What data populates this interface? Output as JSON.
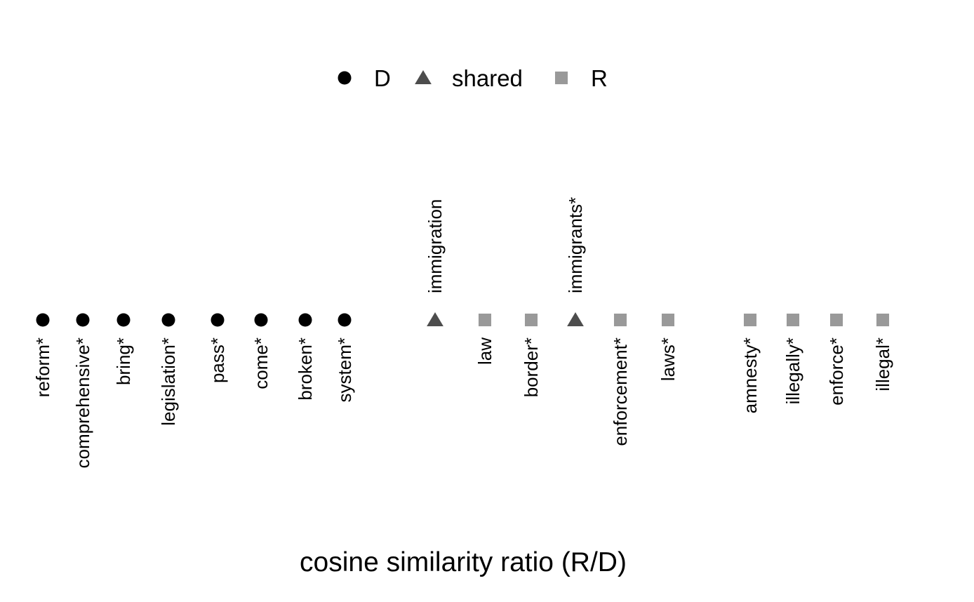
{
  "chart_data": {
    "type": "scatter",
    "xlabel": "cosine similarity ratio (R/D)",
    "legend_position": "top",
    "legend": [
      {
        "key": "D",
        "label": "D",
        "shape": "circle",
        "color": "#000000"
      },
      {
        "key": "shared",
        "label": "shared",
        "shape": "triangle",
        "color": "#4d4d4d"
      },
      {
        "key": "R",
        "label": "R",
        "shape": "square",
        "color": "#999999"
      }
    ],
    "points": [
      {
        "label": "reform*",
        "group": "D"
      },
      {
        "label": "comprehensive*",
        "group": "D"
      },
      {
        "label": "bring*",
        "group": "D"
      },
      {
        "label": "legislation*",
        "group": "D"
      },
      {
        "label": "pass*",
        "group": "D"
      },
      {
        "label": "come*",
        "group": "D"
      },
      {
        "label": "broken*",
        "group": "D"
      },
      {
        "label": "system*",
        "group": "D"
      },
      {
        "label": "immigration",
        "group": "shared"
      },
      {
        "label": "law",
        "group": "R"
      },
      {
        "label": "border*",
        "group": "R"
      },
      {
        "label": "immigrants*",
        "group": "shared"
      },
      {
        "label": "enforcement*",
        "group": "R"
      },
      {
        "label": "laws*",
        "group": "R"
      },
      {
        "label": "amnesty*",
        "group": "R"
      },
      {
        "label": "illegally*",
        "group": "R"
      },
      {
        "label": "enforce*",
        "group": "R"
      },
      {
        "label": "illegal*",
        "group": "R"
      }
    ],
    "grid": false
  }
}
